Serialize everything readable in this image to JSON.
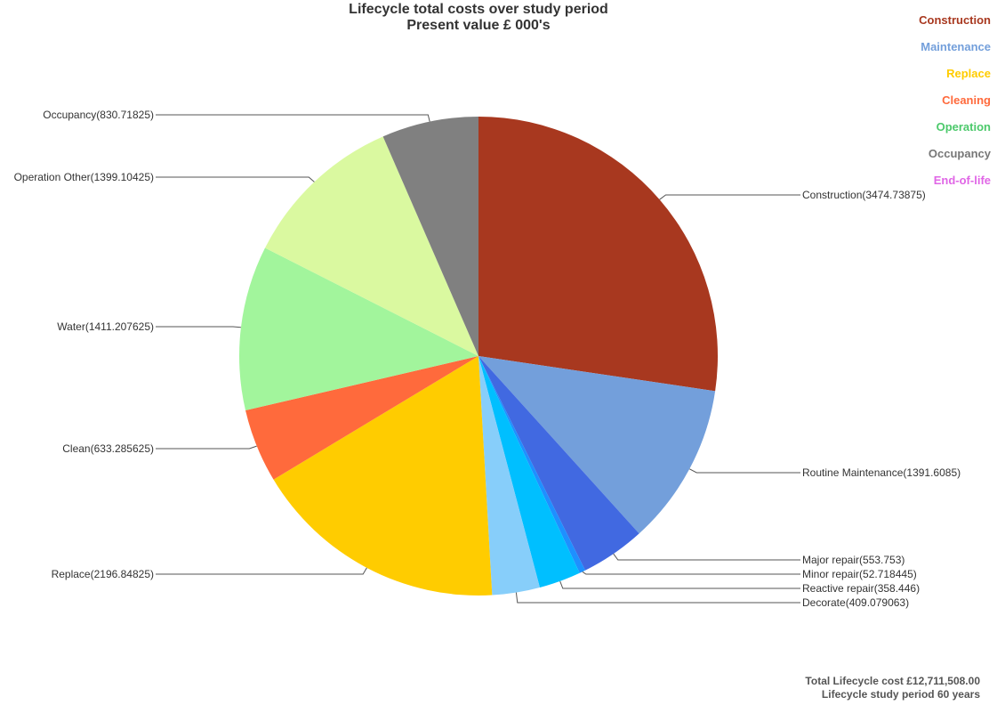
{
  "chart_data": {
    "type": "pie",
    "title": "Lifecycle total costs over study period",
    "subtitle": "Present value £ 000's",
    "slices": [
      {
        "name": "Construction",
        "value": 3474.73875,
        "label": "Construction(3474.73875)",
        "color": "#A8381F"
      },
      {
        "name": "Routine Maintenance",
        "value": 1391.6085,
        "label": "Routine Maintenance(1391.6085)",
        "color": "#739FDB"
      },
      {
        "name": "Major repair",
        "value": 553.753,
        "label": "Major repair(553.753)",
        "color": "#4169E1"
      },
      {
        "name": "Minor repair",
        "value": 52.718445,
        "label": "Minor repair(52.718445)",
        "color": "#1E90FF"
      },
      {
        "name": "Reactive repair",
        "value": 358.446,
        "label": "Reactive repair(358.446)",
        "color": "#00BFFF"
      },
      {
        "name": "Decorate",
        "value": 409.079063,
        "label": "Decorate(409.079063)",
        "color": "#87CEFA"
      },
      {
        "name": "Replace",
        "value": 2196.84825,
        "label": "Replace(2196.84825)",
        "color": "#FFCC00"
      },
      {
        "name": "Clean",
        "value": 633.285625,
        "label": "Clean(633.285625)",
        "color": "#FF6A3C"
      },
      {
        "name": "Water",
        "value": 1411.207625,
        "label": "Water(1411.207625)",
        "color": "#A2F59C"
      },
      {
        "name": "Operation Other",
        "value": 1399.10425,
        "label": "Operation Other(1399.10425)",
        "color": "#DAF9A0"
      },
      {
        "name": "Occupancy",
        "value": 830.71825,
        "label": "Occupancy(830.71825)",
        "color": "#808080"
      }
    ],
    "legend_position": "top-right",
    "legend": [
      {
        "label": "Construction",
        "color": "#A8381F"
      },
      {
        "label": "Maintenance",
        "color": "#739FDB"
      },
      {
        "label": "Replace",
        "color": "#FFCC00"
      },
      {
        "label": "Cleaning",
        "color": "#FF6A3C"
      },
      {
        "label": "Operation",
        "color": "#4CC96B"
      },
      {
        "label": "Occupancy",
        "color": "#777777"
      },
      {
        "label": "End-of-life",
        "color": "#E066E6"
      }
    ]
  },
  "footer": {
    "total": "Total Lifecycle cost £12,711,508.00",
    "period": "Lifecycle study period 60 years"
  }
}
